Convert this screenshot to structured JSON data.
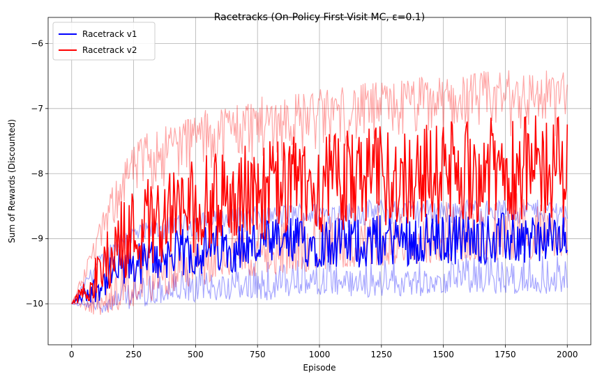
{
  "chart_data": {
    "type": "line",
    "title": "Racetracks (On-Policy First-Visit MC, ε=0.1)",
    "xlabel": "Episode",
    "ylabel": "Sum of Rewards (Discounted)",
    "xlim": [
      -95,
      2095
    ],
    "ylim": [
      -10.63,
      -5.6
    ],
    "x_ticks": [
      0,
      250,
      500,
      750,
      1000,
      1250,
      1500,
      1750,
      2000
    ],
    "y_ticks": [
      -10,
      -9,
      -8,
      -7,
      -6
    ],
    "grid": true,
    "legend_position": "top-left",
    "series": [
      {
        "name": "Racetrack v1",
        "color": "#0000ff",
        "x": [
          0,
          100,
          200,
          300,
          400,
          500,
          600,
          700,
          800,
          900,
          1000,
          1100,
          1200,
          1300,
          1400,
          1500,
          1600,
          1700,
          1800,
          1900,
          2000
        ],
        "mean": [
          -10.0,
          -9.75,
          -9.45,
          -9.35,
          -9.25,
          -9.2,
          -9.15,
          -9.1,
          -9.1,
          -9.05,
          -9.05,
          -9.05,
          -9.05,
          -9.0,
          -9.0,
          -9.0,
          -9.0,
          -9.0,
          -9.0,
          -9.0,
          -9.0
        ],
        "lower": [
          -10.0,
          -10.15,
          -10.1,
          -10.05,
          -10.0,
          -10.0,
          -9.95,
          -9.95,
          -9.95,
          -9.9,
          -9.9,
          -9.9,
          -9.9,
          -9.9,
          -9.9,
          -9.85,
          -9.85,
          -9.85,
          -9.85,
          -9.85,
          -9.85
        ],
        "upper": [
          -10.0,
          -9.3,
          -8.85,
          -8.75,
          -8.65,
          -8.6,
          -8.55,
          -8.5,
          -8.5,
          -8.45,
          -8.45,
          -8.45,
          -8.4,
          -8.4,
          -8.4,
          -8.4,
          -8.4,
          -8.4,
          -8.4,
          -8.4,
          -8.4
        ]
      },
      {
        "name": "Racetrack v2",
        "color": "#ff0000",
        "x": [
          0,
          100,
          200,
          300,
          400,
          500,
          600,
          700,
          800,
          900,
          1000,
          1100,
          1200,
          1300,
          1400,
          1500,
          1600,
          1700,
          1800,
          1900,
          2000
        ],
        "mean": [
          -10.0,
          -9.6,
          -9.0,
          -8.75,
          -8.6,
          -8.5,
          -8.4,
          -8.3,
          -8.25,
          -8.2,
          -8.15,
          -8.1,
          -8.05,
          -8.05,
          -8.0,
          -8.0,
          -7.95,
          -7.95,
          -7.9,
          -7.9,
          -7.9
        ],
        "lower": [
          -10.0,
          -10.2,
          -10.1,
          -10.0,
          -9.85,
          -9.75,
          -9.65,
          -9.6,
          -9.55,
          -9.55,
          -9.5,
          -9.45,
          -9.45,
          -9.4,
          -9.4,
          -9.4,
          -9.35,
          -9.35,
          -9.35,
          -9.3,
          -9.3
        ],
        "upper": [
          -10.0,
          -8.9,
          -7.8,
          -7.35,
          -7.2,
          -7.05,
          -6.95,
          -6.85,
          -6.8,
          -6.75,
          -6.7,
          -6.65,
          -6.6,
          -6.55,
          -6.5,
          -6.5,
          -6.45,
          -6.4,
          -6.4,
          -6.4,
          -6.4
        ]
      }
    ]
  }
}
